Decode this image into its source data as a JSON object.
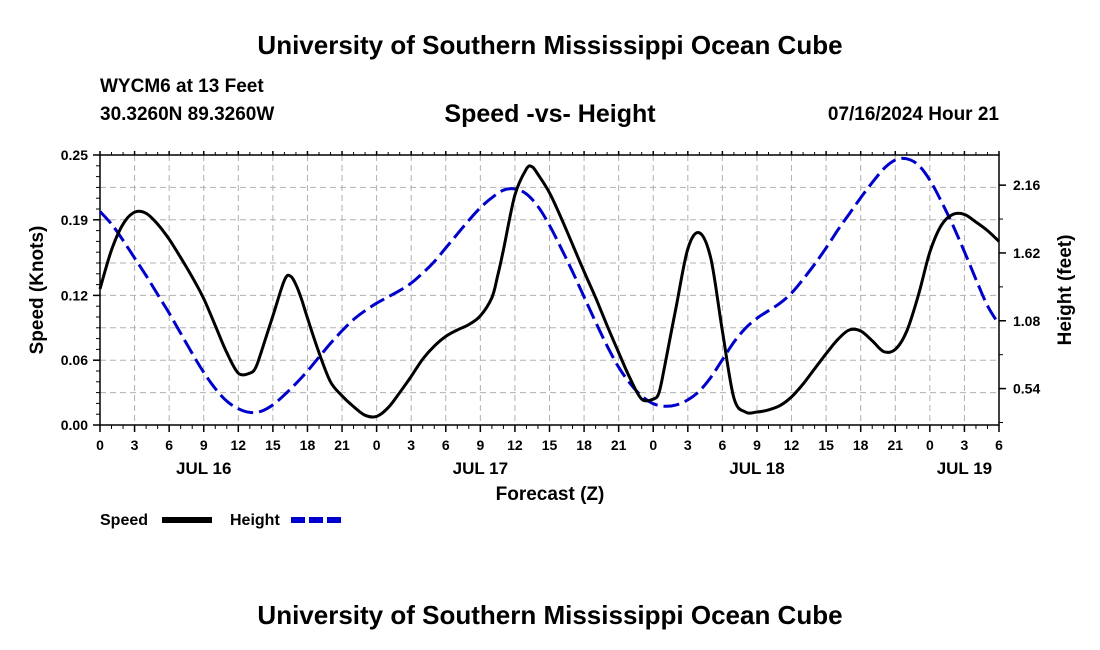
{
  "header": {
    "title": "University of Southern Mississippi Ocean Cube",
    "station": "WYCM6 at 13 Feet",
    "coordinates": "30.3260N  89.3260W",
    "datestamp": "07/16/2024 Hour 21"
  },
  "footer": {
    "title": "University of Southern Mississippi Ocean Cube"
  },
  "chart_data": {
    "type": "line",
    "title": "Speed -vs- Height",
    "xlabel": "Forecast (Z)",
    "ylabel": "Speed (Knots)",
    "y2label": "Height (feet)",
    "x_unit": "hours since 2024-07-16 00Z",
    "xlim": [
      0,
      78
    ],
    "ylim": [
      0,
      0.25
    ],
    "y2lim": [
      0.25,
      2.4
    ],
    "x_ticks": [
      0,
      3,
      6,
      9,
      12,
      15,
      18,
      21,
      24,
      27,
      30,
      33,
      36,
      39,
      42,
      45,
      48,
      51,
      54,
      57,
      60,
      63,
      66,
      69,
      72,
      75,
      78
    ],
    "x_tick_labels": [
      "0",
      "3",
      "6",
      "9",
      "12",
      "15",
      "18",
      "21",
      "0",
      "3",
      "6",
      "9",
      "12",
      "15",
      "18",
      "21",
      "0",
      "3",
      "6",
      "9",
      "12",
      "15",
      "18",
      "21",
      "0",
      "3",
      "6"
    ],
    "day_labels": [
      {
        "x": 9,
        "label": "JUL 16"
      },
      {
        "x": 33,
        "label": "JUL 17"
      },
      {
        "x": 57,
        "label": "JUL 18"
      },
      {
        "x": 75,
        "label": "JUL 19"
      }
    ],
    "y_ticks": [
      0.0,
      0.06,
      0.12,
      0.19,
      0.25
    ],
    "y_tick_labels": [
      "0.00",
      "0.06",
      "0.12",
      "0.19",
      "0.25"
    ],
    "y2_ticks": [
      0.54,
      1.08,
      1.62,
      2.16
    ],
    "y2_tick_labels": [
      "0.54",
      "1.08",
      "1.62",
      "2.16"
    ],
    "grid": true,
    "legend_position": "bottom-left",
    "series": [
      {
        "name": "Speed",
        "axis": "left",
        "color": "#000000",
        "dash": "solid",
        "x": [
          0,
          1,
          2,
          3,
          4,
          5,
          6,
          7,
          8,
          9,
          10,
          11,
          12,
          13,
          13.5,
          14,
          15,
          16,
          16.5,
          17,
          17.5,
          18,
          19,
          20,
          21,
          22,
          23,
          24,
          25,
          26,
          27,
          28,
          29,
          30,
          31,
          32,
          33,
          34,
          34.5,
          35,
          36,
          37,
          37.5,
          38,
          39,
          40,
          41,
          42,
          43,
          44,
          45,
          46,
          47,
          48,
          48.5,
          49,
          50,
          51,
          52,
          53,
          54,
          55,
          56,
          57,
          58,
          59,
          60,
          61,
          62,
          63,
          64,
          65,
          66,
          67,
          68,
          69,
          70,
          71,
          72,
          73,
          74,
          75,
          76,
          77,
          78
        ],
        "values": [
          0.126,
          0.162,
          0.186,
          0.197,
          0.196,
          0.186,
          0.172,
          0.155,
          0.137,
          0.117,
          0.092,
          0.067,
          0.048,
          0.048,
          0.053,
          0.068,
          0.101,
          0.134,
          0.138,
          0.13,
          0.116,
          0.099,
          0.067,
          0.04,
          0.027,
          0.017,
          0.009,
          0.008,
          0.016,
          0.03,
          0.045,
          0.061,
          0.073,
          0.082,
          0.088,
          0.093,
          0.101,
          0.118,
          0.138,
          0.162,
          0.213,
          0.237,
          0.239,
          0.232,
          0.215,
          0.192,
          0.167,
          0.142,
          0.118,
          0.092,
          0.067,
          0.043,
          0.024,
          0.024,
          0.03,
          0.055,
          0.11,
          0.163,
          0.178,
          0.154,
          0.087,
          0.025,
          0.012,
          0.012,
          0.014,
          0.018,
          0.026,
          0.038,
          0.052,
          0.066,
          0.079,
          0.088,
          0.087,
          0.078,
          0.068,
          0.07,
          0.087,
          0.12,
          0.16,
          0.185,
          0.195,
          0.195,
          0.188,
          0.18,
          0.17
        ]
      },
      {
        "name": "Height",
        "axis": "right",
        "color": "#0000CC",
        "dash": "dashed",
        "x": [
          0,
          1,
          2,
          3,
          4,
          5,
          6,
          7,
          8,
          9,
          10,
          11,
          12,
          13,
          14,
          15,
          16,
          17,
          18,
          19,
          20,
          21,
          22,
          23,
          24,
          25,
          26,
          27,
          28,
          29,
          30,
          31,
          32,
          33,
          34,
          35,
          36,
          37,
          38,
          39,
          40,
          41,
          42,
          43,
          44,
          45,
          46,
          47,
          48,
          49,
          50,
          51,
          52,
          53,
          54,
          55,
          56,
          57,
          58,
          59,
          60,
          61,
          62,
          63,
          64,
          65,
          66,
          67,
          68,
          69,
          70,
          71,
          72,
          73,
          74,
          75,
          76,
          77,
          78
        ],
        "values": [
          1.95,
          1.85,
          1.72,
          1.58,
          1.44,
          1.29,
          1.14,
          0.98,
          0.82,
          0.67,
          0.54,
          0.44,
          0.38,
          0.35,
          0.36,
          0.41,
          0.49,
          0.58,
          0.68,
          0.79,
          0.9,
          1.0,
          1.09,
          1.16,
          1.22,
          1.27,
          1.32,
          1.38,
          1.46,
          1.55,
          1.66,
          1.77,
          1.88,
          1.98,
          2.06,
          2.12,
          2.13,
          2.09,
          1.99,
          1.84,
          1.66,
          1.47,
          1.27,
          1.07,
          0.88,
          0.71,
          0.58,
          0.48,
          0.42,
          0.4,
          0.41,
          0.45,
          0.52,
          0.63,
          0.77,
          0.91,
          1.02,
          1.1,
          1.16,
          1.22,
          1.3,
          1.41,
          1.53,
          1.66,
          1.8,
          1.93,
          2.06,
          2.18,
          2.29,
          2.36,
          2.37,
          2.32,
          2.2,
          2.03,
          1.84,
          1.63,
          1.41,
          1.2,
          1.05
        ]
      }
    ]
  }
}
